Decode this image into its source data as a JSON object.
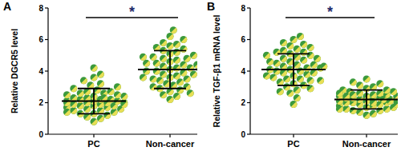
{
  "chart_data": [
    {
      "type": "dot",
      "title": "A",
      "ylabel": "Relative DGCR5 level",
      "annotation": "*",
      "categories": [
        "PC",
        "Non-cancer"
      ],
      "values": [
        [
          0.8,
          1.0,
          1.1,
          1.2,
          1.3,
          1.3,
          1.4,
          1.5,
          1.5,
          1.6,
          1.6,
          1.7,
          1.7,
          1.8,
          1.8,
          1.8,
          1.9,
          1.9,
          2.0,
          2.0,
          2.0,
          2.1,
          2.1,
          2.1,
          2.2,
          2.2,
          2.2,
          2.3,
          2.3,
          2.4,
          2.4,
          2.5,
          2.5,
          2.6,
          2.6,
          2.7,
          2.7,
          2.8,
          2.9,
          3.0,
          3.1,
          3.2,
          3.4,
          3.6,
          3.8,
          4.2,
          1.4,
          1.9,
          2.3,
          2.0
        ],
        [
          2.2,
          2.4,
          2.5,
          2.7,
          2.8,
          2.9,
          3.0,
          3.1,
          3.2,
          3.3,
          3.4,
          3.5,
          3.5,
          3.6,
          3.7,
          3.8,
          3.8,
          3.9,
          4.0,
          4.0,
          4.1,
          4.1,
          4.2,
          4.2,
          4.3,
          4.4,
          4.5,
          4.5,
          4.6,
          4.7,
          4.8,
          4.8,
          4.9,
          5.0,
          5.1,
          5.2,
          5.3,
          5.4,
          5.5,
          5.6,
          5.7,
          5.8,
          6.0,
          6.2,
          6.6,
          3.0,
          3.6,
          4.4,
          4.9,
          2.6
        ]
      ],
      "means": [
        2.1,
        4.1
      ],
      "errors": [
        0.8,
        1.2
      ],
      "colors": [
        "#3c9a3c",
        "#e8df55"
      ],
      "ylim": [
        0,
        8
      ],
      "yticks": [
        0,
        2,
        4,
        6,
        8
      ],
      "grid": false
    },
    {
      "type": "dot",
      "title": "B",
      "ylabel": "Relative TGF-β1 mRNA level",
      "annotation": "*",
      "categories": [
        "PC",
        "Non-cancer"
      ],
      "values": [
        [
          1.9,
          2.3,
          2.6,
          2.8,
          3.0,
          3.1,
          3.2,
          3.3,
          3.4,
          3.5,
          3.5,
          3.6,
          3.7,
          3.8,
          3.9,
          3.9,
          4.0,
          4.0,
          4.1,
          4.1,
          4.2,
          4.2,
          4.3,
          4.4,
          4.4,
          4.5,
          4.6,
          4.7,
          4.8,
          4.9,
          5.0,
          5.1,
          5.2,
          5.3,
          5.4,
          5.5,
          5.6,
          5.7,
          5.8,
          6.0,
          6.2,
          2.9,
          3.4,
          4.6,
          5.2,
          4.8,
          3.7,
          5.0,
          4.3,
          2.7
        ],
        [
          1.2,
          1.3,
          1.4,
          1.5,
          1.5,
          1.6,
          1.6,
          1.7,
          1.7,
          1.8,
          1.8,
          1.9,
          1.9,
          2.0,
          2.0,
          2.0,
          2.1,
          2.1,
          2.1,
          2.2,
          2.2,
          2.2,
          2.3,
          2.3,
          2.3,
          2.4,
          2.4,
          2.4,
          2.5,
          2.5,
          2.6,
          2.6,
          2.7,
          2.7,
          2.8,
          2.9,
          3.0,
          3.1,
          3.2,
          3.5,
          1.9,
          2.2,
          2.5,
          2.0,
          2.8,
          1.6,
          2.4,
          2.1,
          2.6,
          3.3
        ]
      ],
      "means": [
        4.1,
        2.2
      ],
      "errors": [
        1.0,
        0.6
      ],
      "colors": [
        "#3c9a3c",
        "#e8df55"
      ],
      "ylim": [
        0,
        8
      ],
      "yticks": [
        0,
        2,
        4,
        6,
        8
      ],
      "grid": false
    }
  ]
}
